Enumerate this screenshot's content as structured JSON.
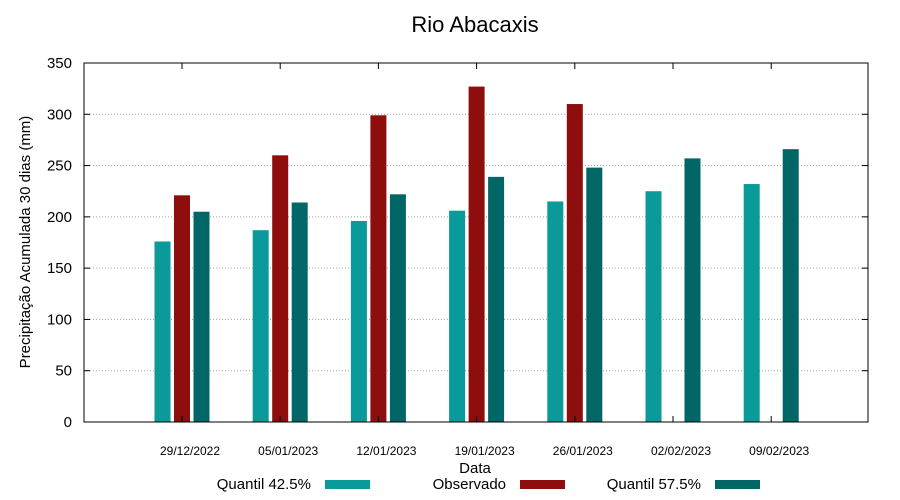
{
  "chart_data": {
    "type": "bar",
    "title": "Rio Abacaxis",
    "xlabel": "Data",
    "ylabel": "Precipitação Acumulada 30 dias (mm)",
    "ylim": [
      0,
      350
    ],
    "yticks": [
      0,
      50,
      100,
      150,
      200,
      250,
      300,
      350
    ],
    "grid": true,
    "legend_position": "bottom",
    "categories": [
      "29/12/2022",
      "05/01/2023",
      "12/01/2023",
      "19/01/2023",
      "26/01/2023",
      "02/02/2023",
      "09/02/2023"
    ],
    "series": [
      {
        "name": "Quantil 42.5%",
        "color": "#0a9a9a",
        "values": [
          176,
          187,
          196,
          206,
          215,
          225,
          232
        ]
      },
      {
        "name": "Observado",
        "color": "#8e0d0d",
        "values": [
          221,
          260,
          299,
          327,
          310,
          null,
          null
        ]
      },
      {
        "name": "Quantil 57.5%",
        "color": "#006666",
        "values": [
          205,
          214,
          222,
          239,
          248,
          257,
          266
        ]
      }
    ]
  }
}
